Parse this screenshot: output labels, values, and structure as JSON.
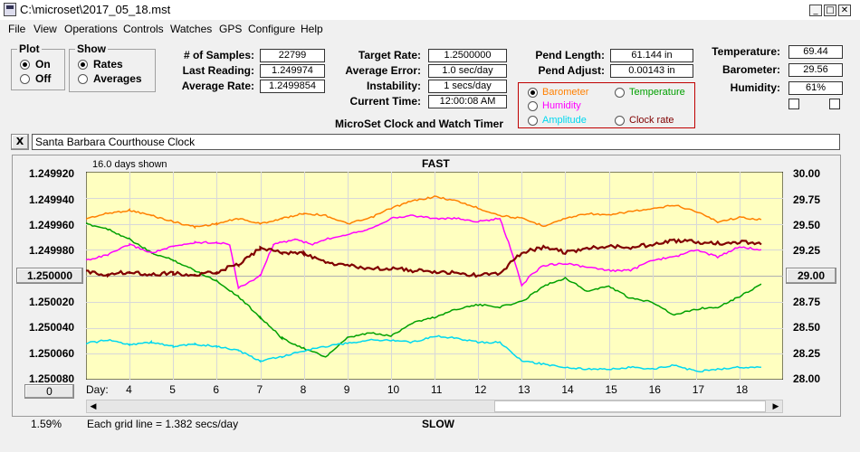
{
  "window": {
    "title": "C:\\microset\\2017_05_18.mst",
    "min": "_",
    "max": "□",
    "close": "✕"
  },
  "menu": [
    "File",
    "View",
    "Operations",
    "Controls",
    "Watches",
    "GPS",
    "Configure",
    "Help"
  ],
  "plot_group": {
    "title": "Plot",
    "options": [
      "On",
      "Off"
    ],
    "selected": "On"
  },
  "show_group": {
    "title": "Show",
    "options": [
      "Rates",
      "Averages"
    ],
    "selected": "Rates"
  },
  "stats": {
    "samples_label": "# of Samples:",
    "samples": "22799",
    "last_label": "Last Reading:",
    "last": "1.249974",
    "avg_rate_label": "Average Rate:",
    "avg_rate": "1.2499854",
    "target_label": "Target Rate:",
    "target": "1.2500000",
    "avg_err_label": "Average Error:",
    "avg_err": "1.0 sec/day",
    "instab_label": "Instability:",
    "instab": "1 secs/day",
    "time_label": "Current Time:",
    "time": "12:00:08 AM",
    "pend_len_label": "Pend Length:",
    "pend_len": "61.144 in",
    "pend_adj_label": "Pend Adjust:",
    "pend_adj": "0.00143 in",
    "temp_label": "Temperature:",
    "temp": "69.44",
    "baro_label": "Barometer:",
    "baro": "29.56",
    "hum_label": "Humidity:",
    "hum": "61%"
  },
  "sensor_options": [
    {
      "label": "Barometer",
      "color": "#ff8000",
      "selected": true
    },
    {
      "label": "Temperature",
      "color": "#00a000",
      "selected": false
    },
    {
      "label": "Humidity",
      "color": "#ff00ff",
      "selected": false
    },
    {
      "label": "Amplitude",
      "color": "#00d8f0",
      "selected": false
    },
    {
      "label": "Clock rate",
      "color": "#800000",
      "selected": false
    }
  ],
  "subtitle": "MicroSet Clock and Watch Timer",
  "clock_name": "Santa Barbara Courthouse Clock",
  "clear_button": "X",
  "plot": {
    "days_shown": "16.0 days shown",
    "fast": "FAST",
    "slow": "SLOW",
    "left_ticks": [
      "1.249920",
      "1.249940",
      "1.249960",
      "1.249980",
      "1.250000",
      "1.250020",
      "1.250040",
      "1.250060",
      "1.250080"
    ],
    "right_ticks": [
      "30.00",
      "29.75",
      "29.50",
      "29.25",
      "29.00",
      "28.75",
      "28.50",
      "28.25",
      "28.00"
    ],
    "center_left_button": "1.250000",
    "center_right_button": "29.00",
    "bottom_left_button": "0",
    "day_label": "Day:",
    "days": [
      "4",
      "5",
      "6",
      "7",
      "8",
      "9",
      "10",
      "11",
      "12",
      "13",
      "14",
      "15",
      "16",
      "17",
      "18"
    ],
    "grid_note": "Each grid line = 1.382 secs/day",
    "percent": "1.59%"
  },
  "chart_data": {
    "type": "line",
    "x_range": [
      3,
      19.0
    ],
    "y_left_range": [
      1.24992,
      1.25008
    ],
    "y_right_range": [
      28.0,
      30.0
    ],
    "series": [
      {
        "name": "Barometer",
        "color": "#ff8000",
        "axis": "right",
        "points": [
          [
            3.0,
            29.55
          ],
          [
            3.5,
            29.6
          ],
          [
            4.0,
            29.63
          ],
          [
            4.5,
            29.58
          ],
          [
            5.0,
            29.52
          ],
          [
            5.5,
            29.47
          ],
          [
            6.0,
            29.5
          ],
          [
            6.5,
            29.55
          ],
          [
            7.0,
            29.5
          ],
          [
            7.5,
            29.55
          ],
          [
            8.0,
            29.6
          ],
          [
            8.5,
            29.58
          ],
          [
            9.0,
            29.5
          ],
          [
            9.5,
            29.55
          ],
          [
            10.0,
            29.65
          ],
          [
            10.5,
            29.72
          ],
          [
            11.0,
            29.76
          ],
          [
            11.5,
            29.72
          ],
          [
            12.0,
            29.65
          ],
          [
            12.5,
            29.58
          ],
          [
            13.0,
            29.55
          ],
          [
            13.5,
            29.48
          ],
          [
            14.0,
            29.55
          ],
          [
            14.5,
            29.6
          ],
          [
            15.0,
            29.58
          ],
          [
            15.5,
            29.62
          ],
          [
            16.0,
            29.64
          ],
          [
            16.5,
            29.68
          ],
          [
            17.0,
            29.62
          ],
          [
            17.5,
            29.52
          ],
          [
            18.0,
            29.56
          ],
          [
            18.5,
            29.54
          ]
        ]
      },
      {
        "name": "Temperature",
        "color": "#00a000",
        "axis": "right",
        "points": [
          [
            3.0,
            29.5
          ],
          [
            3.5,
            29.45
          ],
          [
            4.0,
            29.35
          ],
          [
            4.5,
            29.22
          ],
          [
            5.0,
            29.15
          ],
          [
            5.5,
            29.05
          ],
          [
            6.0,
            28.95
          ],
          [
            6.5,
            28.8
          ],
          [
            7.0,
            28.6
          ],
          [
            7.5,
            28.4
          ],
          [
            8.0,
            28.3
          ],
          [
            8.5,
            28.22
          ],
          [
            9.0,
            28.4
          ],
          [
            9.5,
            28.45
          ],
          [
            10.0,
            28.42
          ],
          [
            10.5,
            28.55
          ],
          [
            11.0,
            28.6
          ],
          [
            11.5,
            28.68
          ],
          [
            12.0,
            28.72
          ],
          [
            12.5,
            28.7
          ],
          [
            13.0,
            28.75
          ],
          [
            13.5,
            28.9
          ],
          [
            14.0,
            28.98
          ],
          [
            14.5,
            28.85
          ],
          [
            15.0,
            28.9
          ],
          [
            15.5,
            28.78
          ],
          [
            16.0,
            28.75
          ],
          [
            16.5,
            28.62
          ],
          [
            17.0,
            28.68
          ],
          [
            17.5,
            28.7
          ],
          [
            18.0,
            28.8
          ],
          [
            18.5,
            28.92
          ]
        ]
      },
      {
        "name": "Humidity",
        "color": "#ff00ff",
        "axis": "right",
        "points": [
          [
            3.0,
            29.15
          ],
          [
            3.5,
            29.2
          ],
          [
            4.0,
            29.3
          ],
          [
            4.5,
            29.22
          ],
          [
            5.0,
            29.28
          ],
          [
            5.5,
            29.32
          ],
          [
            6.0,
            29.32
          ],
          [
            6.3,
            29.3
          ],
          [
            6.5,
            28.88
          ],
          [
            7.0,
            29.0
          ],
          [
            7.3,
            29.3
          ],
          [
            7.8,
            29.35
          ],
          [
            8.2,
            29.3
          ],
          [
            8.5,
            29.35
          ],
          [
            9.0,
            29.4
          ],
          [
            9.5,
            29.45
          ],
          [
            10.0,
            29.55
          ],
          [
            10.5,
            29.58
          ],
          [
            11.0,
            29.55
          ],
          [
            11.5,
            29.55
          ],
          [
            12.0,
            29.52
          ],
          [
            12.5,
            29.55
          ],
          [
            12.8,
            29.2
          ],
          [
            13.0,
            28.9
          ],
          [
            13.2,
            29.0
          ],
          [
            13.5,
            29.1
          ],
          [
            14.0,
            29.12
          ],
          [
            14.5,
            29.08
          ],
          [
            15.0,
            29.05
          ],
          [
            15.5,
            29.05
          ],
          [
            16.0,
            29.15
          ],
          [
            16.5,
            29.18
          ],
          [
            17.0,
            29.25
          ],
          [
            17.5,
            29.18
          ],
          [
            18.0,
            29.28
          ],
          [
            18.5,
            29.25
          ]
        ]
      },
      {
        "name": "Amplitude",
        "color": "#00d8f0",
        "axis": "right",
        "points": [
          [
            3.0,
            28.35
          ],
          [
            3.5,
            28.38
          ],
          [
            4.0,
            28.34
          ],
          [
            4.5,
            28.36
          ],
          [
            5.0,
            28.32
          ],
          [
            5.5,
            28.34
          ],
          [
            6.0,
            28.32
          ],
          [
            6.5,
            28.28
          ],
          [
            7.0,
            28.18
          ],
          [
            7.5,
            28.22
          ],
          [
            8.0,
            28.28
          ],
          [
            8.5,
            28.32
          ],
          [
            9.0,
            28.35
          ],
          [
            9.5,
            28.38
          ],
          [
            10.0,
            28.38
          ],
          [
            10.5,
            28.36
          ],
          [
            11.0,
            28.42
          ],
          [
            11.5,
            28.4
          ],
          [
            12.0,
            28.36
          ],
          [
            12.5,
            28.36
          ],
          [
            13.0,
            28.18
          ],
          [
            13.5,
            28.15
          ],
          [
            14.0,
            28.12
          ],
          [
            14.5,
            28.1
          ],
          [
            15.0,
            28.1
          ],
          [
            15.5,
            28.12
          ],
          [
            16.0,
            28.1
          ],
          [
            16.5,
            28.14
          ],
          [
            17.0,
            28.08
          ],
          [
            17.5,
            28.1
          ],
          [
            18.0,
            28.12
          ],
          [
            18.5,
            28.12
          ]
        ]
      },
      {
        "name": "Clock rate",
        "color": "#800000",
        "axis": "left",
        "points": [
          [
            3.0,
            1.249997
          ],
          [
            3.5,
            1.249999
          ],
          [
            4.0,
            1.249997
          ],
          [
            4.5,
            1.249999
          ],
          [
            5.0,
            1.249998
          ],
          [
            5.5,
            1.25
          ],
          [
            6.0,
            1.249997
          ],
          [
            6.5,
            1.249991
          ],
          [
            7.0,
            1.249979
          ],
          [
            7.5,
            1.249982
          ],
          [
            8.0,
            1.249983
          ],
          [
            8.5,
            1.24999
          ],
          [
            9.0,
            1.249992
          ],
          [
            9.5,
            1.249995
          ],
          [
            10.0,
            1.249994
          ],
          [
            10.5,
            1.249996
          ],
          [
            11.0,
            1.249997
          ],
          [
            11.5,
            1.249998
          ],
          [
            12.0,
            1.25
          ],
          [
            12.5,
            1.249998
          ],
          [
            13.0,
            1.249982
          ],
          [
            13.5,
            1.249978
          ],
          [
            14.0,
            1.249982
          ],
          [
            14.5,
            1.249979
          ],
          [
            15.0,
            1.249977
          ],
          [
            15.5,
            1.249978
          ],
          [
            16.0,
            1.249976
          ],
          [
            16.5,
            1.249973
          ],
          [
            17.0,
            1.249974
          ],
          [
            17.5,
            1.249975
          ],
          [
            18.0,
            1.249974
          ],
          [
            18.5,
            1.249976
          ]
        ]
      }
    ]
  }
}
